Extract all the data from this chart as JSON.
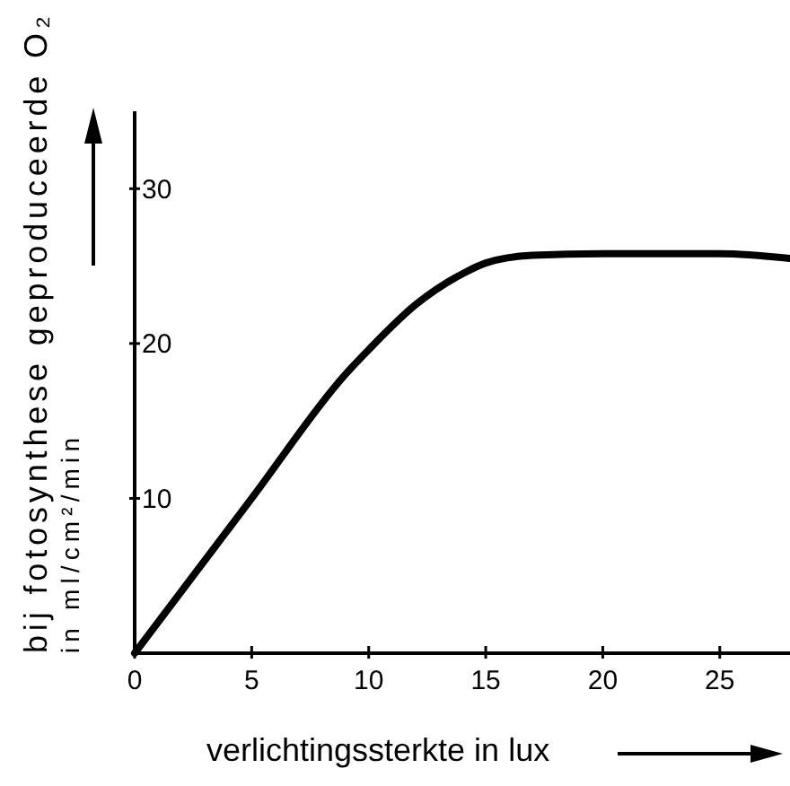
{
  "chart_data": {
    "type": "line",
    "xlabel": "verlichtingssterkte in lux",
    "ylabel": "bij fotosynthese geproduceerde O₂\nin ml/cm²/min",
    "x": [
      0,
      5,
      9,
      10,
      12,
      14,
      15,
      17,
      20,
      25,
      28
    ],
    "series": [
      {
        "color": "#000000",
        "values": [
          0,
          10,
          18,
          19.6,
          22.5,
          24.5,
          25.2,
          25.7,
          25.8,
          25.8,
          25.5
        ]
      }
    ],
    "xlim": [
      0,
      28
    ],
    "ylim": [
      0,
      35
    ],
    "xticks": [
      0,
      5,
      10,
      15,
      20,
      25
    ],
    "yticks": [
      10,
      20,
      30
    ],
    "marker": "none",
    "line_style": "solid"
  }
}
